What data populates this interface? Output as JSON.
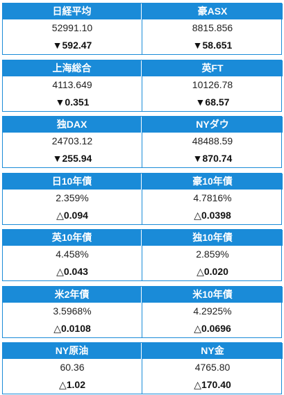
{
  "markets": [
    {
      "items": [
        {
          "name": "日経平均",
          "value": "52991.10",
          "change": "▼592.47"
        },
        {
          "name": "豪ASX",
          "value": "8815.856",
          "change": "▼58.651"
        }
      ]
    },
    {
      "items": [
        {
          "name": "上海総合",
          "value": "4113.649",
          "change": "▼0.351"
        },
        {
          "name": "英FT",
          "value": "10126.78",
          "change": "▼68.57"
        }
      ]
    },
    {
      "items": [
        {
          "name": "独DAX",
          "value": "24703.12",
          "change": "▼255.94"
        },
        {
          "name": "NYダウ",
          "value": "48488.59",
          "change": "▼870.74"
        }
      ]
    },
    {
      "items": [
        {
          "name": "日10年債",
          "value": "2.359%",
          "change": "△0.094"
        },
        {
          "name": "豪10年債",
          "value": "4.7816%",
          "change": "△0.0398"
        }
      ]
    },
    {
      "items": [
        {
          "name": "英10年債",
          "value": "4.458%",
          "change": "△0.043"
        },
        {
          "name": "独10年債",
          "value": "2.859%",
          "change": "△0.020"
        }
      ]
    },
    {
      "items": [
        {
          "name": "米2年債",
          "value": "3.5968%",
          "change": "△0.0108"
        },
        {
          "name": "米10年債",
          "value": "4.2925%",
          "change": "△0.0696"
        }
      ]
    },
    {
      "items": [
        {
          "name": "NY原油",
          "value": "60.36",
          "change": "△1.02"
        },
        {
          "name": "NY金",
          "value": "4765.80",
          "change": "△170.40"
        }
      ]
    }
  ]
}
